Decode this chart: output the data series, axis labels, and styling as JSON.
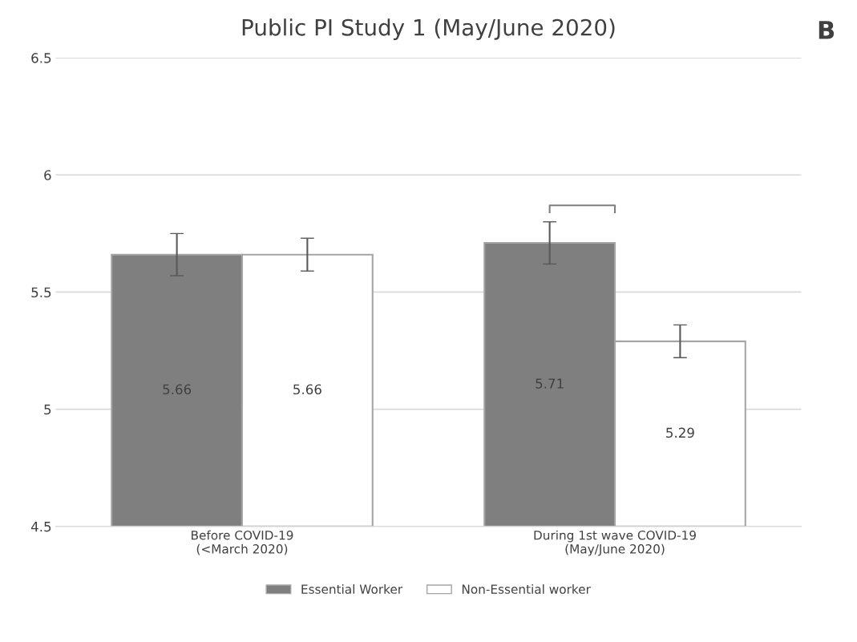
{
  "chart_data": {
    "type": "bar",
    "title": "Public PI Study 1 (May/June 2020)",
    "categories": [
      "Before COVID-19\n(<March 2020)",
      "During 1st wave COVID-19\n(May/June 2020)"
    ],
    "series": [
      {
        "name": "Essential Worker",
        "color": "#7f7f7f",
        "values": [
          5.66,
          5.71
        ],
        "errors": [
          0.09,
          0.09
        ]
      },
      {
        "name": "Non-Essential worker",
        "color": "#ffffff",
        "values": [
          5.66,
          5.29
        ],
        "errors": [
          0.07,
          0.07
        ]
      }
    ],
    "ylim": [
      4.5,
      6.5
    ],
    "yticks": [
      4.5,
      5,
      5.5,
      6,
      6.5
    ],
    "grid": "y",
    "legend": "bottom",
    "data_labels": true,
    "annotations": [
      "B"
    ]
  }
}
